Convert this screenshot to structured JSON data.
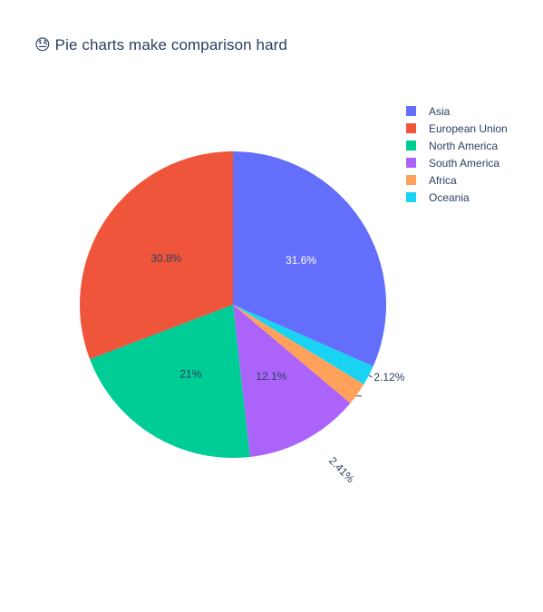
{
  "title": "😓 Pie charts make comparison hard",
  "chart_data": {
    "type": "pie",
    "title": "😓 Pie charts make comparison hard",
    "direction": "clockwise",
    "start_angle_deg": 0,
    "legend_position": "top-right",
    "slices": [
      {
        "label": "Asia",
        "value": 31.6,
        "display": "31.6%",
        "color": "#636efa"
      },
      {
        "label": "Oceania",
        "value": 2.12,
        "display": "2.12%",
        "color": "#19d3f3"
      },
      {
        "label": "Africa",
        "value": 2.41,
        "display": "2.41%",
        "color": "#ffa15a"
      },
      {
        "label": "South America",
        "value": 12.1,
        "display": "12.1%",
        "color": "#ab63fa"
      },
      {
        "label": "North America",
        "value": 21,
        "display": "21%",
        "color": "#00cc96"
      },
      {
        "label": "European Union",
        "value": 30.8,
        "display": "30.8%",
        "color": "#ef553b"
      }
    ],
    "legend": [
      {
        "label": "Asia",
        "color": "#636efa"
      },
      {
        "label": "European Union",
        "color": "#ef553b"
      },
      {
        "label": "North America",
        "color": "#00cc96"
      },
      {
        "label": "South America",
        "color": "#ab63fa"
      },
      {
        "label": "Africa",
        "color": "#ffa15a"
      },
      {
        "label": "Oceania",
        "color": "#19d3f3"
      }
    ]
  }
}
